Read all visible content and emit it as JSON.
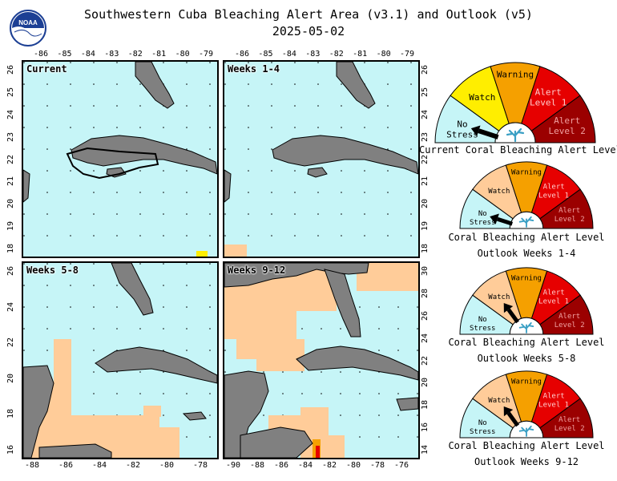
{
  "header": {
    "title": "Southwestern Cuba Bleaching Alert Area (v3.1) and Outlook (v5)",
    "date": "2025-05-02",
    "logo_text": "NOAA"
  },
  "panels": [
    {
      "label": "Current",
      "top_ticks": [
        "-86",
        "-85",
        "-84",
        "-83",
        "-82",
        "-81",
        "-80",
        "-79"
      ],
      "left_ticks": [
        "26",
        "25",
        "24",
        "23",
        "22",
        "21",
        "20",
        "19",
        "18"
      ]
    },
    {
      "label": "Weeks 1-4",
      "top_ticks": [
        "-86",
        "-85",
        "-84",
        "-83",
        "-82",
        "-81",
        "-80",
        "-79"
      ],
      "right_ticks": [
        "26",
        "25",
        "24",
        "23",
        "22",
        "21",
        "20",
        "19",
        "18"
      ]
    },
    {
      "label": "Weeks 5-8",
      "bottom_ticks": [
        "-88",
        "-86",
        "-84",
        "-82",
        "-80",
        "-78"
      ],
      "left_ticks": [
        "26",
        "24",
        "22",
        "20",
        "18",
        "16"
      ]
    },
    {
      "label": "Weeks 9-12",
      "bottom_ticks": [
        "-90",
        "-88",
        "-86",
        "-84",
        "-82",
        "-80",
        "-78",
        "-76"
      ],
      "right_ticks": [
        "30",
        "28",
        "26",
        "24",
        "22",
        "20",
        "18",
        "16",
        "14"
      ]
    }
  ],
  "gauges": [
    {
      "title_line1": "Current Coral Bleaching Alert Level",
      "title_line2": "",
      "level": "No Stress"
    },
    {
      "title_line1": "Coral Bleaching Alert Level",
      "title_line2": "Outlook Weeks 1-4",
      "level": "No Stress"
    },
    {
      "title_line1": "Coral Bleaching Alert Level",
      "title_line2": "Outlook Weeks 5-8",
      "level": "Watch"
    },
    {
      "title_line1": "Coral Bleaching Alert Level",
      "title_line2": "Outlook Weeks 9-12",
      "level": "Watch"
    }
  ],
  "gauge_labels": {
    "no_stress": [
      "No",
      "Stress"
    ],
    "watch": "Watch",
    "warning": "Warning",
    "alert1": [
      "Alert",
      "Level 1"
    ],
    "alert2": [
      "Alert",
      "Level 2"
    ]
  },
  "colors": {
    "ocean": "#c6f5f7",
    "land": "#808080",
    "watch_area": "#ffcc99",
    "warning_area": "#f5a000",
    "alert1_area": "#e60000",
    "gauge_no_stress": "#c6f5f7",
    "gauge_watch": "#ffee00",
    "gauge_watch_outlook": "#ffcc99",
    "gauge_warning": "#f5a000",
    "gauge_alert1": "#e60000",
    "gauge_alert2": "#9b0000"
  },
  "icons": [
    "noaa-logo-icon",
    "coral-icon",
    "gauge-needle-icon"
  ]
}
